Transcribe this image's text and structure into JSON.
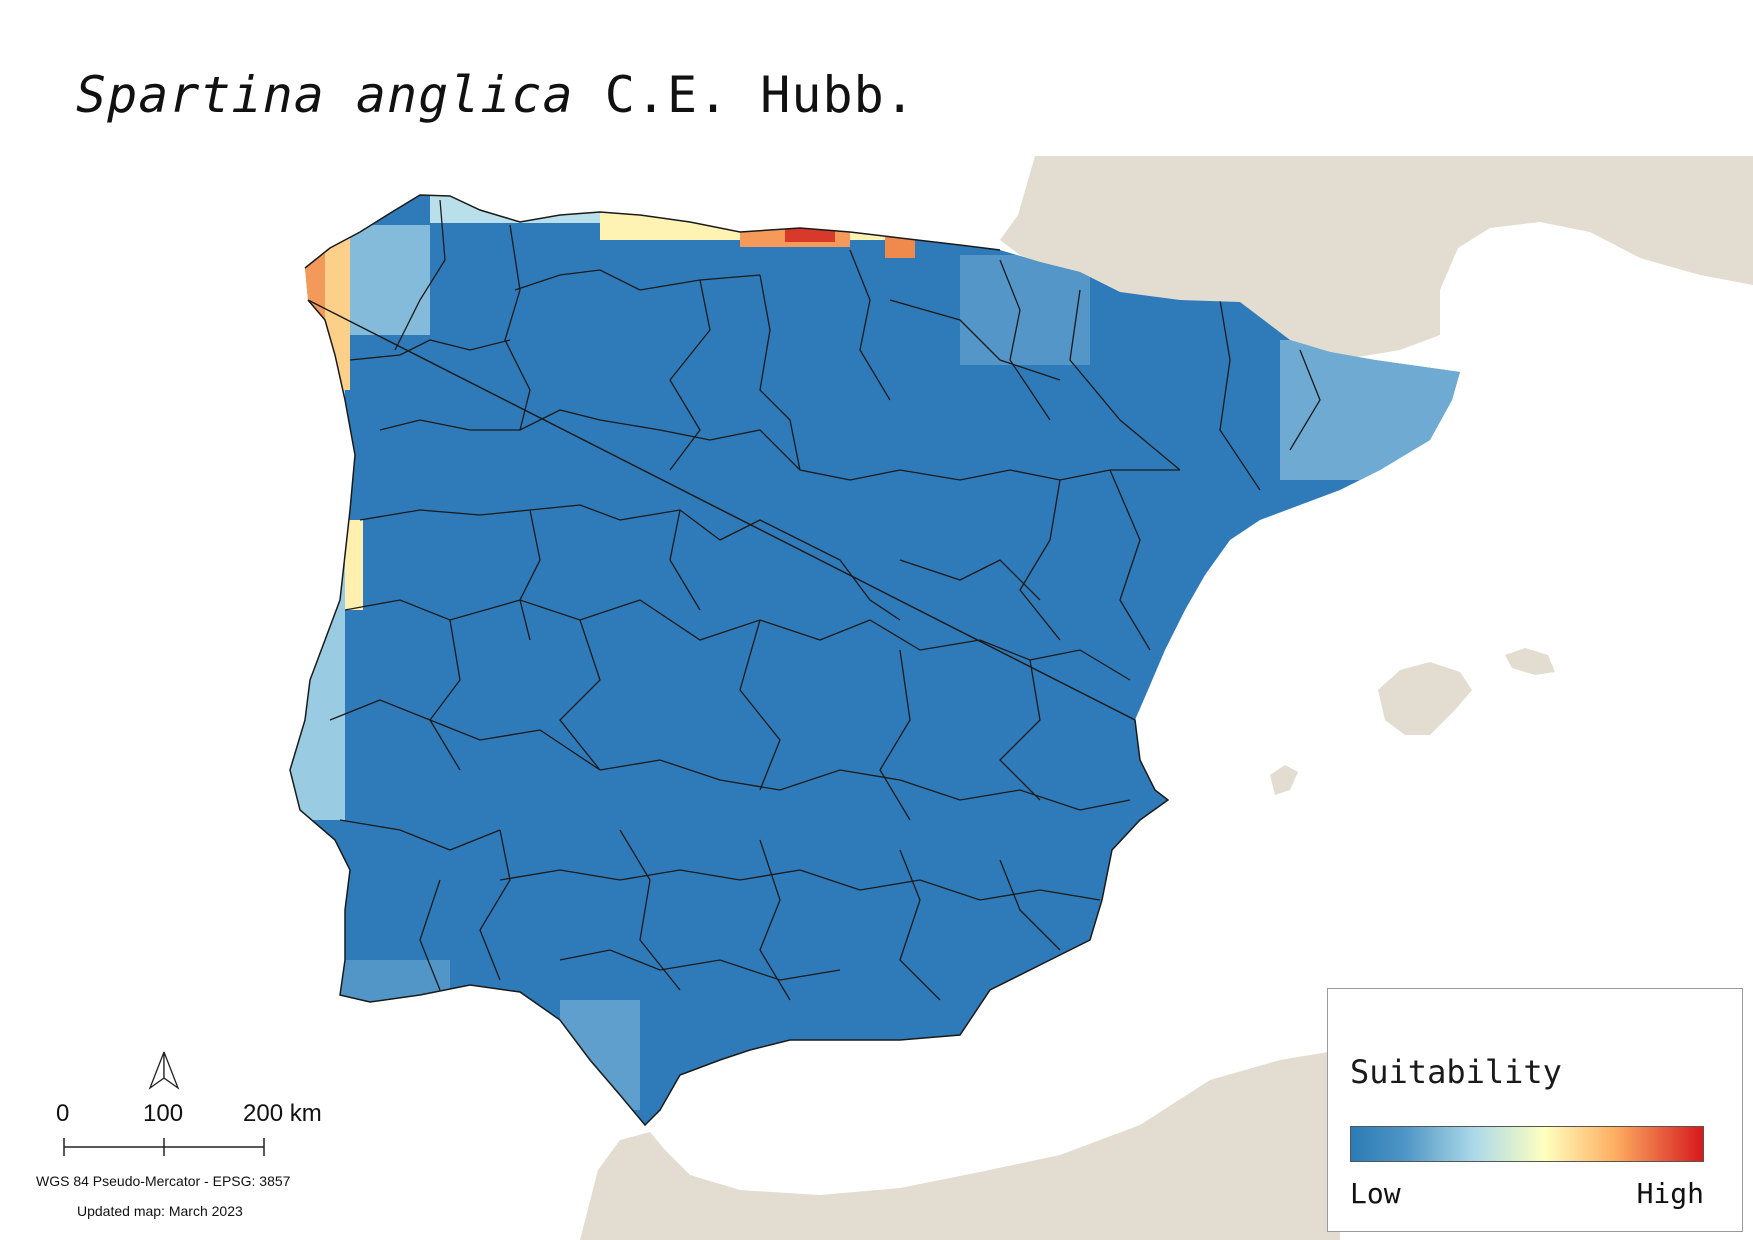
{
  "title": {
    "species": "Spartina anglica",
    "authority": "C.E. Hubb."
  },
  "legend": {
    "title": "Suitability",
    "low_label": "Low",
    "high_label": "High",
    "ramp_colors": [
      "#2c7bb6",
      "#abd9e9",
      "#ffffbf",
      "#fdae61",
      "#d7191c"
    ]
  },
  "scalebar": {
    "ticks": [
      "0",
      "100",
      "200 km"
    ]
  },
  "north_arrow": {
    "icon": "north-arrow-icon"
  },
  "projection_text": "WGS 84 Pseudo-Mercator  - EPSG: 3857",
  "updated_text": "Updated map: March 2023",
  "colors": {
    "land_background": "#e2ddd0",
    "sea": "#ffffff",
    "low_suitability": "#2f7bba",
    "boundary": "#1a1a1a"
  }
}
